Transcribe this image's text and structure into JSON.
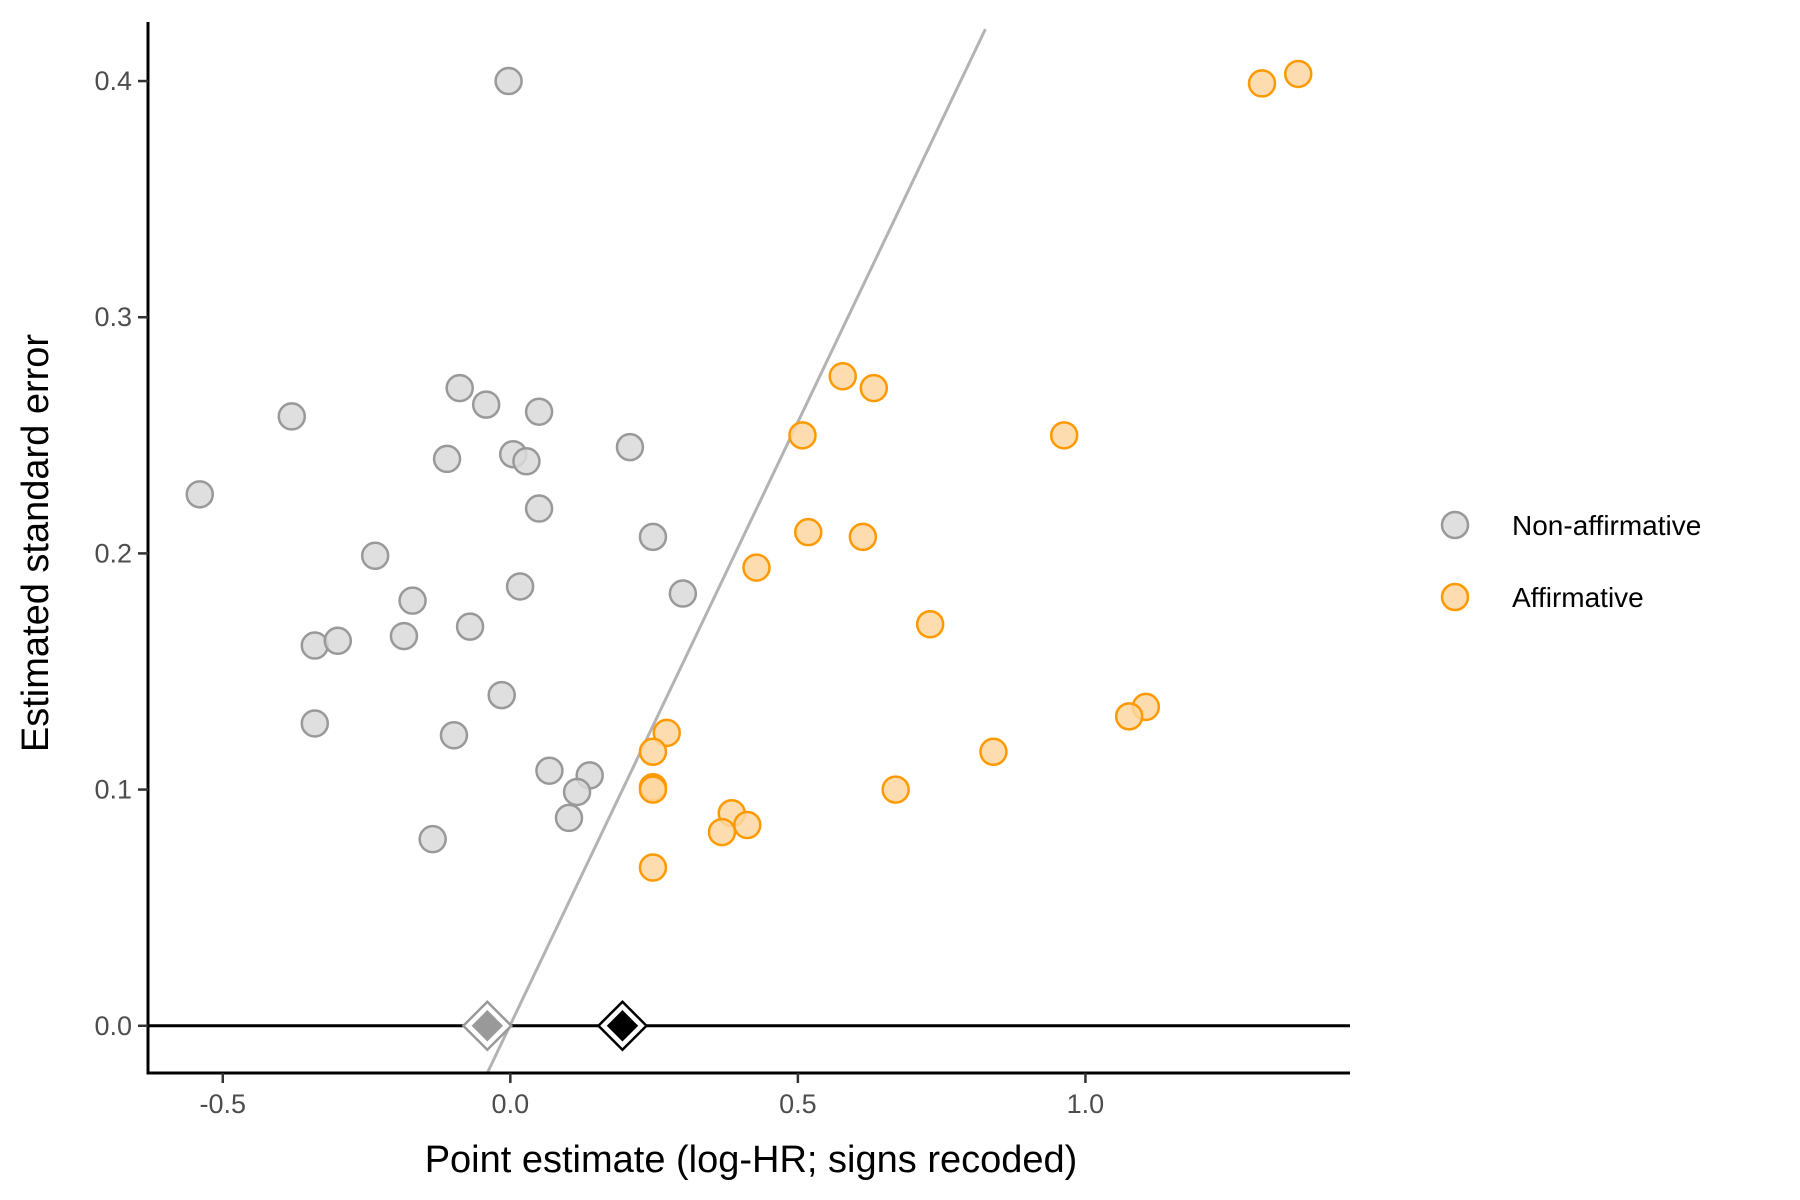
{
  "chart_data": {
    "type": "scatter",
    "title": "",
    "xlabel": "Point estimate (log-HR; signs recoded)",
    "ylabel": "Estimated standard error",
    "xlim": [
      -0.63,
      1.46
    ],
    "ylim": [
      -0.02,
      0.425
    ],
    "x_ticks": [
      -0.5,
      0.0,
      0.5,
      1.0
    ],
    "x_tick_labels": [
      "-0.5",
      "0.0",
      "0.5",
      "1.0"
    ],
    "y_ticks": [
      0.0,
      0.1,
      0.2,
      0.3,
      0.4
    ],
    "y_tick_labels": [
      "0.0",
      "0.1",
      "0.2",
      "0.3",
      "0.4"
    ],
    "grid": false,
    "legend_position": "right",
    "reference_line": {
      "description": "significance threshold",
      "points": [
        [
          -0.04,
          -0.02
        ],
        [
          0.826,
          0.422
        ]
      ],
      "color": "#b3b3b3"
    },
    "series": [
      {
        "name": "Non-affirmative",
        "fill": "#d9d9d9",
        "stroke": "#999999",
        "points": [
          [
            -0.003,
            0.4
          ],
          [
            -0.54,
            0.225
          ],
          [
            -0.38,
            0.258
          ],
          [
            -0.088,
            0.27
          ],
          [
            -0.042,
            0.263
          ],
          [
            0.05,
            0.26
          ],
          [
            -0.11,
            0.24
          ],
          [
            0.005,
            0.242
          ],
          [
            0.028,
            0.239
          ],
          [
            0.05,
            0.219
          ],
          [
            0.208,
            0.245
          ],
          [
            0.248,
            0.207
          ],
          [
            -0.235,
            0.199
          ],
          [
            0.017,
            0.186
          ],
          [
            0.3,
            0.183
          ],
          [
            -0.17,
            0.18
          ],
          [
            -0.185,
            0.165
          ],
          [
            -0.07,
            0.169
          ],
          [
            -0.34,
            0.161
          ],
          [
            -0.3,
            0.163
          ],
          [
            -0.015,
            0.14
          ],
          [
            -0.34,
            0.128
          ],
          [
            -0.098,
            0.123
          ],
          [
            0.068,
            0.108
          ],
          [
            0.138,
            0.106
          ],
          [
            0.116,
            0.099
          ],
          [
            0.102,
            0.088
          ],
          [
            -0.135,
            0.079
          ]
        ]
      },
      {
        "name": "Affirmative",
        "fill": "#fdd7a1",
        "stroke": "#ff9900",
        "points": [
          [
            1.307,
            0.399
          ],
          [
            1.37,
            0.403
          ],
          [
            0.578,
            0.275
          ],
          [
            0.632,
            0.27
          ],
          [
            0.508,
            0.25
          ],
          [
            0.963,
            0.25
          ],
          [
            0.518,
            0.209
          ],
          [
            0.613,
            0.207
          ],
          [
            0.428,
            0.194
          ],
          [
            0.73,
            0.17
          ],
          [
            1.105,
            0.135
          ],
          [
            1.076,
            0.131
          ],
          [
            0.272,
            0.124
          ],
          [
            0.248,
            0.116
          ],
          [
            0.84,
            0.116
          ],
          [
            0.248,
            0.101
          ],
          [
            0.248,
            0.1
          ],
          [
            0.67,
            0.1
          ],
          [
            0.385,
            0.09
          ],
          [
            0.412,
            0.085
          ],
          [
            0.368,
            0.082
          ],
          [
            0.248,
            0.067
          ]
        ]
      }
    ],
    "pooled_estimates": [
      {
        "x": -0.04,
        "y": 0.0,
        "color": "#999999"
      },
      {
        "x": 0.195,
        "y": 0.0,
        "color": "#000000"
      }
    ]
  }
}
